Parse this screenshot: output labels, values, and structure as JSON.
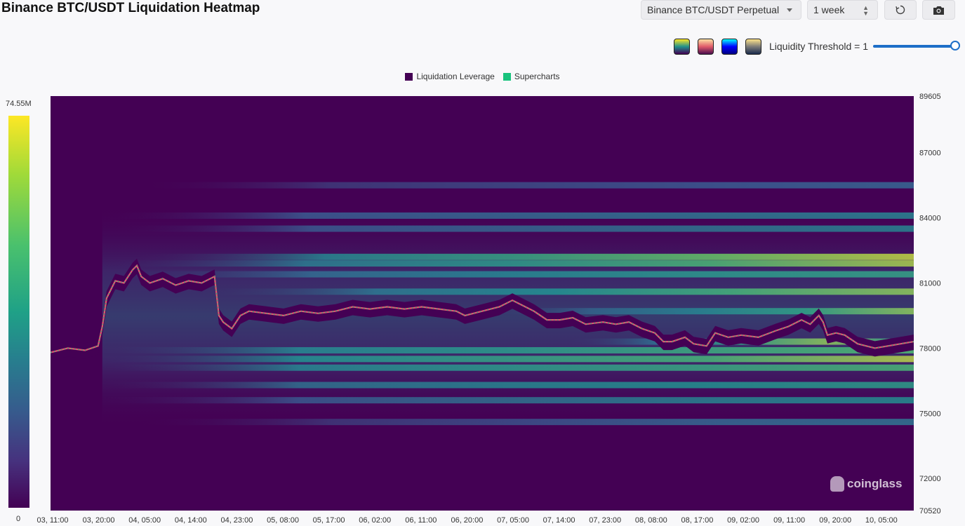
{
  "header": {
    "title": "Binance BTC/USDT Liquidation Heatmap",
    "pair_select": "Binance BTC/USDT Perpetual",
    "range_select": "1 week",
    "refresh_icon": "refresh-icon",
    "camera_icon": "camera-icon"
  },
  "toolbar": {
    "palettes": [
      {
        "name": "viridis",
        "colors": [
          "#fde725",
          "#21918c",
          "#440154"
        ]
      },
      {
        "name": "magma",
        "colors": [
          "#fde2a4",
          "#e05a6a",
          "#4a0e4e"
        ]
      },
      {
        "name": "jet",
        "colors": [
          "#00ffff",
          "#0000ff",
          "#000080"
        ]
      },
      {
        "name": "cividis",
        "colors": [
          "#fde38a",
          "#7c7b78",
          "#1a2b4c"
        ]
      }
    ],
    "threshold_label": "Liquidity Threshold = 1",
    "threshold_value": 1
  },
  "legend": [
    {
      "label": "Liquidation Leverage",
      "color": "#440154"
    },
    {
      "label": "Supercharts",
      "color": "#19c37d"
    }
  ],
  "colorbar": {
    "max_label": "74.55M",
    "min_label": "0"
  },
  "watermark": "coinglass",
  "chart_data": {
    "type": "heatmap",
    "ylim": [
      70520,
      89605
    ],
    "y_ticks": [
      "89605",
      "87000",
      "84000",
      "81000",
      "78000",
      "75000",
      "72000",
      "70520"
    ],
    "x_ticks": [
      "03, 11:00",
      "03, 20:00",
      "04, 05:00",
      "04, 14:00",
      "04, 23:00",
      "05, 08:00",
      "05, 17:00",
      "06, 02:00",
      "06, 11:00",
      "06, 20:00",
      "07, 05:00",
      "07, 14:00",
      "07, 23:00",
      "08, 08:00",
      "08, 17:00",
      "09, 02:00",
      "09, 11:00",
      "09, 20:00",
      "10, 05:00"
    ],
    "heat_bands": [
      {
        "price": 82200,
        "start": 0.09,
        "intensity": [
          0.45,
          0.6,
          0.78,
          0.95
        ]
      },
      {
        "price": 81900,
        "start": 0.06,
        "intensity": [
          0.4,
          0.55,
          0.7,
          0.92
        ]
      },
      {
        "price": 81400,
        "start": 0.07,
        "intensity": [
          0.3,
          0.45,
          0.55,
          0.6
        ]
      },
      {
        "price": 80600,
        "start": 0.17,
        "intensity": [
          0.35,
          0.5,
          0.7,
          0.9
        ]
      },
      {
        "price": 79700,
        "start": 0.5,
        "intensity": [
          0.2,
          0.4,
          0.6,
          0.92
        ]
      },
      {
        "price": 78300,
        "start": 0.6,
        "intensity": [
          0.3,
          0.6,
          0.9,
          0.5
        ]
      },
      {
        "price": 77900,
        "start": 0.05,
        "intensity": [
          0.45,
          0.55,
          0.65,
          0.75
        ]
      },
      {
        "price": 77500,
        "start": 0.05,
        "intensity": [
          0.5,
          0.6,
          0.7,
          0.97
        ]
      },
      {
        "price": 77100,
        "start": 0.05,
        "intensity": [
          0.45,
          0.55,
          0.62,
          0.7
        ]
      },
      {
        "price": 76300,
        "start": 0.05,
        "intensity": [
          0.35,
          0.45,
          0.5,
          0.55
        ]
      },
      {
        "price": 75600,
        "start": 0.05,
        "intensity": [
          0.25,
          0.35,
          0.42,
          0.46
        ]
      },
      {
        "price": 84100,
        "start": 0.06,
        "intensity": [
          0.25,
          0.3,
          0.35,
          0.4
        ]
      },
      {
        "price": 83500,
        "start": 0.07,
        "intensity": [
          0.25,
          0.3,
          0.36,
          0.42
        ]
      },
      {
        "price": 85500,
        "start": 0.1,
        "intensity": [
          0.15,
          0.2,
          0.24,
          0.28
        ]
      },
      {
        "price": 74600,
        "start": 0.1,
        "intensity": [
          0.15,
          0.22,
          0.3,
          0.34
        ]
      }
    ],
    "price_series": [
      [
        0,
        77800
      ],
      [
        0.02,
        78000
      ],
      [
        0.04,
        77900
      ],
      [
        0.055,
        78100
      ],
      [
        0.06,
        79000
      ],
      [
        0.065,
        80300
      ],
      [
        0.075,
        81100
      ],
      [
        0.085,
        81000
      ],
      [
        0.095,
        81600
      ],
      [
        0.1,
        81800
      ],
      [
        0.105,
        81300
      ],
      [
        0.115,
        81000
      ],
      [
        0.13,
        81200
      ],
      [
        0.145,
        80900
      ],
      [
        0.16,
        81100
      ],
      [
        0.175,
        81000
      ],
      [
        0.185,
        81200
      ],
      [
        0.19,
        81300
      ],
      [
        0.195,
        79500
      ],
      [
        0.2,
        79200
      ],
      [
        0.21,
        78900
      ],
      [
        0.22,
        79500
      ],
      [
        0.23,
        79700
      ],
      [
        0.25,
        79600
      ],
      [
        0.27,
        79500
      ],
      [
        0.29,
        79700
      ],
      [
        0.31,
        79600
      ],
      [
        0.33,
        79700
      ],
      [
        0.35,
        79900
      ],
      [
        0.37,
        79800
      ],
      [
        0.39,
        79900
      ],
      [
        0.41,
        79800
      ],
      [
        0.43,
        79900
      ],
      [
        0.45,
        79800
      ],
      [
        0.47,
        79700
      ],
      [
        0.48,
        79500
      ],
      [
        0.5,
        79700
      ],
      [
        0.52,
        79900
      ],
      [
        0.535,
        80200
      ],
      [
        0.545,
        80000
      ],
      [
        0.56,
        79700
      ],
      [
        0.575,
        79300
      ],
      [
        0.59,
        79300
      ],
      [
        0.605,
        79400
      ],
      [
        0.62,
        79100
      ],
      [
        0.64,
        79200
      ],
      [
        0.655,
        79100
      ],
      [
        0.67,
        79200
      ],
      [
        0.685,
        78900
      ],
      [
        0.7,
        78700
      ],
      [
        0.71,
        78300
      ],
      [
        0.72,
        78300
      ],
      [
        0.735,
        78500
      ],
      [
        0.745,
        78200
      ],
      [
        0.76,
        78100
      ],
      [
        0.77,
        78700
      ],
      [
        0.785,
        78500
      ],
      [
        0.8,
        78600
      ],
      [
        0.82,
        78500
      ],
      [
        0.84,
        78800
      ],
      [
        0.855,
        79000
      ],
      [
        0.87,
        79300
      ],
      [
        0.88,
        79100
      ],
      [
        0.89,
        79500
      ],
      [
        0.895,
        79200
      ],
      [
        0.9,
        78600
      ],
      [
        0.91,
        78700
      ],
      [
        0.92,
        78600
      ],
      [
        0.935,
        78200
      ],
      [
        0.945,
        78100
      ],
      [
        0.955,
        78000
      ],
      [
        0.97,
        78100
      ],
      [
        0.985,
        78200
      ],
      [
        1,
        78300
      ]
    ]
  }
}
